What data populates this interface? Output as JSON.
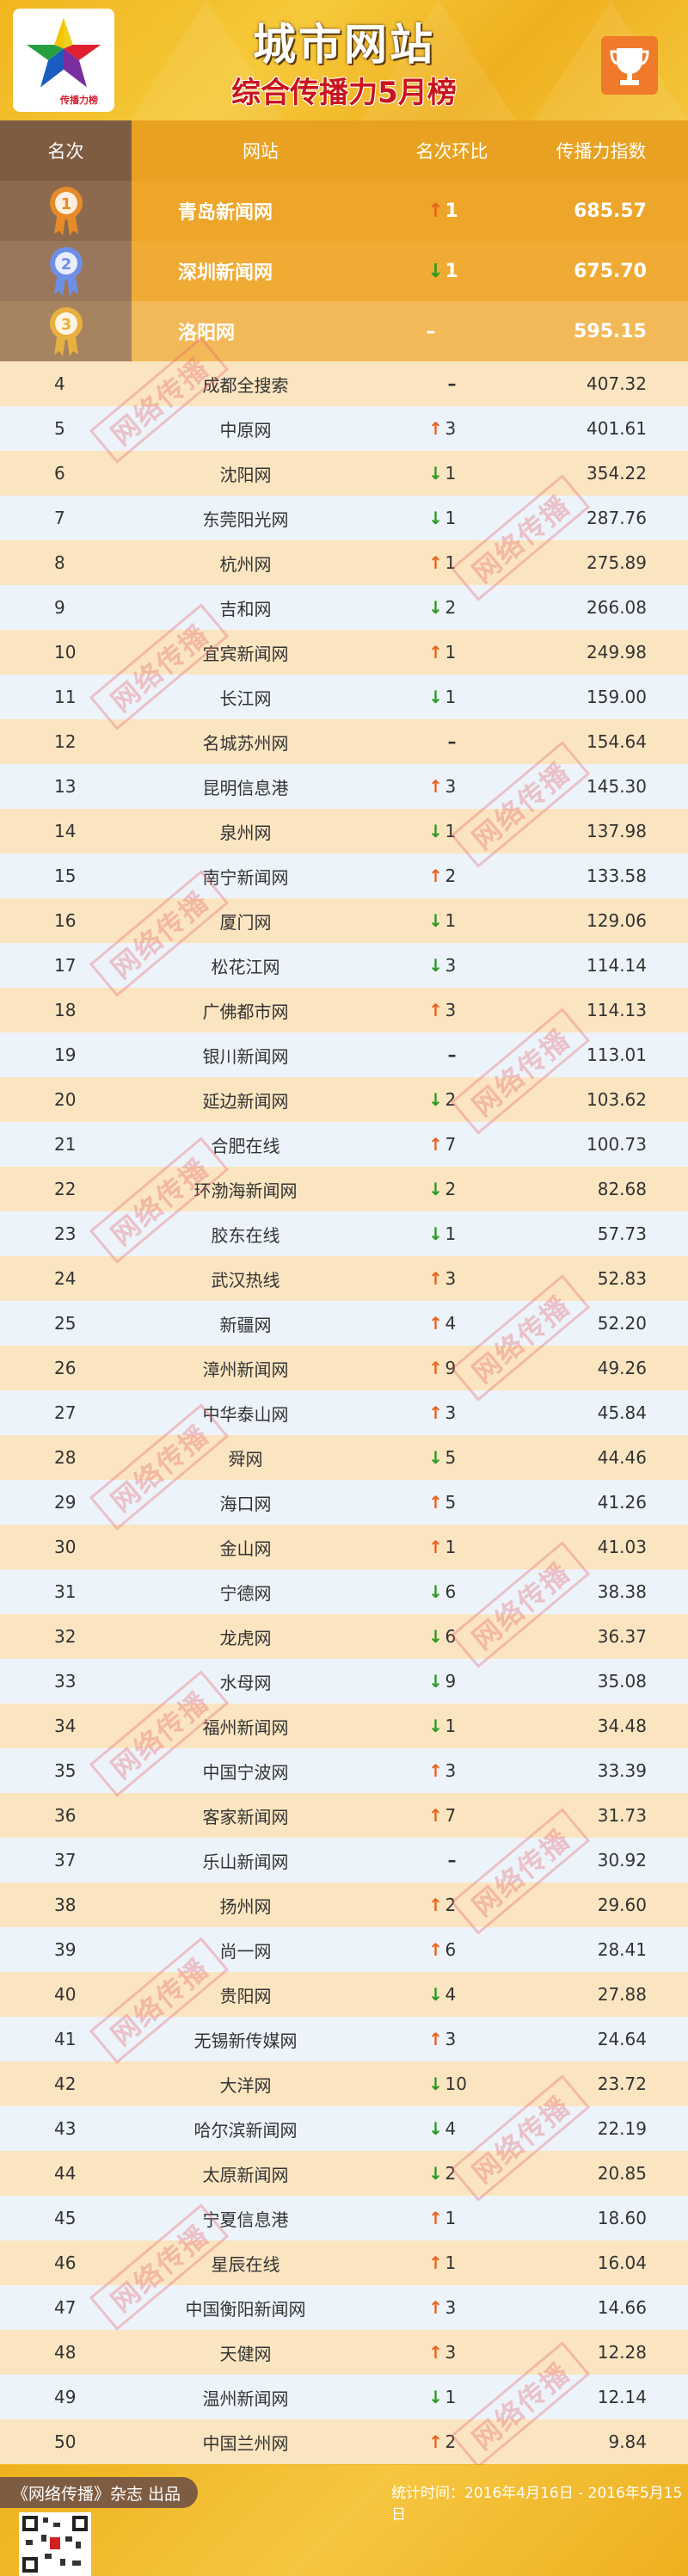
{
  "header": {
    "title": "城市网站",
    "subtitle": "综合传播力5月榜",
    "logo_text": "Top News Websites 传播力榜"
  },
  "columns": [
    "名次",
    "网站",
    "名次环比",
    "传播力指数"
  ],
  "top3": [
    {
      "rank": 1,
      "site": "青岛新闻网",
      "dir": "up",
      "change": "1",
      "score": "685.57",
      "medal_color": "#e68a2a"
    },
    {
      "rank": 2,
      "site": "深圳新闻网",
      "dir": "down",
      "change": "1",
      "score": "675.70",
      "medal_color": "#6f8fe6"
    },
    {
      "rank": 3,
      "site": "洛阳网",
      "dir": "none",
      "change": "–",
      "score": "595.15",
      "medal_color": "#e8b040"
    }
  ],
  "rows": [
    {
      "rank": "4",
      "site": "成都全搜索",
      "dir": "none",
      "change": "",
      "score": "407.32"
    },
    {
      "rank": "5",
      "site": "中原网",
      "dir": "up",
      "change": "3",
      "score": "401.61"
    },
    {
      "rank": "6",
      "site": "沈阳网",
      "dir": "down",
      "change": "1",
      "score": "354.22"
    },
    {
      "rank": "7",
      "site": "东莞阳光网",
      "dir": "down",
      "change": "1",
      "score": "287.76"
    },
    {
      "rank": "8",
      "site": "杭州网",
      "dir": "up",
      "change": "1",
      "score": "275.89"
    },
    {
      "rank": "9",
      "site": "吉和网",
      "dir": "down",
      "change": "2",
      "score": "266.08"
    },
    {
      "rank": "10",
      "site": "宜宾新闻网",
      "dir": "up",
      "change": "1",
      "score": "249.98"
    },
    {
      "rank": "11",
      "site": "长江网",
      "dir": "down",
      "change": "1",
      "score": "159.00"
    },
    {
      "rank": "12",
      "site": "名城苏州网",
      "dir": "none",
      "change": "",
      "score": "154.64"
    },
    {
      "rank": "13",
      "site": "昆明信息港",
      "dir": "up",
      "change": "3",
      "score": "145.30"
    },
    {
      "rank": "14",
      "site": "泉州网",
      "dir": "down",
      "change": "1",
      "score": "137.98"
    },
    {
      "rank": "15",
      "site": "南宁新闻网",
      "dir": "up",
      "change": "2",
      "score": "133.58"
    },
    {
      "rank": "16",
      "site": "厦门网",
      "dir": "down",
      "change": "1",
      "score": "129.06"
    },
    {
      "rank": "17",
      "site": "松花江网",
      "dir": "down",
      "change": "3",
      "score": "114.14"
    },
    {
      "rank": "18",
      "site": "广佛都市网",
      "dir": "up",
      "change": "3",
      "score": "114.13"
    },
    {
      "rank": "19",
      "site": "银川新闻网",
      "dir": "none",
      "change": "",
      "score": "113.01"
    },
    {
      "rank": "20",
      "site": "延边新闻网",
      "dir": "down",
      "change": "2",
      "score": "103.62"
    },
    {
      "rank": "21",
      "site": "合肥在线",
      "dir": "up",
      "change": "7",
      "score": "100.73"
    },
    {
      "rank": "22",
      "site": "环渤海新闻网",
      "dir": "down",
      "change": "2",
      "score": "82.68"
    },
    {
      "rank": "23",
      "site": "胶东在线",
      "dir": "down",
      "change": "1",
      "score": "57.73"
    },
    {
      "rank": "24",
      "site": "武汉热线",
      "dir": "up",
      "change": "3",
      "score": "52.83"
    },
    {
      "rank": "25",
      "site": "新疆网",
      "dir": "up",
      "change": "4",
      "score": "52.20"
    },
    {
      "rank": "26",
      "site": "漳州新闻网",
      "dir": "up",
      "change": "9",
      "score": "49.26"
    },
    {
      "rank": "27",
      "site": "中华泰山网",
      "dir": "up",
      "change": "3",
      "score": "45.84"
    },
    {
      "rank": "28",
      "site": "舜网",
      "dir": "down",
      "change": "5",
      "score": "44.46"
    },
    {
      "rank": "29",
      "site": "海口网",
      "dir": "up",
      "change": "5",
      "score": "41.26"
    },
    {
      "rank": "30",
      "site": "金山网",
      "dir": "up",
      "change": "1",
      "score": "41.03"
    },
    {
      "rank": "31",
      "site": "宁德网",
      "dir": "down",
      "change": "6",
      "score": "38.38"
    },
    {
      "rank": "32",
      "site": "龙虎网",
      "dir": "down",
      "change": "6",
      "score": "36.37"
    },
    {
      "rank": "33",
      "site": "水母网",
      "dir": "down",
      "change": "9",
      "score": "35.08"
    },
    {
      "rank": "34",
      "site": "福州新闻网",
      "dir": "down",
      "change": "1",
      "score": "34.48"
    },
    {
      "rank": "35",
      "site": "中国宁波网",
      "dir": "up",
      "change": "3",
      "score": "33.39"
    },
    {
      "rank": "36",
      "site": "客家新闻网",
      "dir": "up",
      "change": "7",
      "score": "31.73"
    },
    {
      "rank": "37",
      "site": "乐山新闻网",
      "dir": "none",
      "change": "",
      "score": "30.92"
    },
    {
      "rank": "38",
      "site": "扬州网",
      "dir": "up",
      "change": "2",
      "score": "29.60"
    },
    {
      "rank": "39",
      "site": "尚一网",
      "dir": "up",
      "change": "6",
      "score": "28.41"
    },
    {
      "rank": "40",
      "site": "贵阳网",
      "dir": "down",
      "change": "4",
      "score": "27.88"
    },
    {
      "rank": "41",
      "site": "无锡新传媒网",
      "dir": "up",
      "change": "3",
      "score": "24.64"
    },
    {
      "rank": "42",
      "site": "大洋网",
      "dir": "down",
      "change": "10",
      "score": "23.72"
    },
    {
      "rank": "43",
      "site": "哈尔滨新闻网",
      "dir": "down",
      "change": "4",
      "score": "22.19"
    },
    {
      "rank": "44",
      "site": "太原新闻网",
      "dir": "down",
      "change": "2",
      "score": "20.85"
    },
    {
      "rank": "45",
      "site": "宁夏信息港",
      "dir": "up",
      "change": "1",
      "score": "18.60"
    },
    {
      "rank": "46",
      "site": "星辰在线",
      "dir": "up",
      "change": "1",
      "score": "16.04"
    },
    {
      "rank": "47",
      "site": "中国衡阳新闻网",
      "dir": "up",
      "change": "3",
      "score": "14.66"
    },
    {
      "rank": "48",
      "site": "天健网",
      "dir": "up",
      "change": "3",
      "score": "12.28"
    },
    {
      "rank": "49",
      "site": "温州新闻网",
      "dir": "down",
      "change": "1",
      "score": "12.14"
    },
    {
      "rank": "50",
      "site": "中国兰州网",
      "dir": "up",
      "change": "2",
      "score": "9.84"
    }
  ],
  "symbols": {
    "up": "↑",
    "down": "↓",
    "none": "–"
  },
  "colors": {
    "up": "#e8621c",
    "down": "#2a9a20",
    "header_bg": "#e8a120",
    "rank_bg": "#7e5c42"
  },
  "watermark": "网络传播",
  "footer": {
    "publisher": "《网络传播》杂志 出品",
    "stat_period": "统计时间：2016年4月16日 - 2016年5月15日"
  }
}
